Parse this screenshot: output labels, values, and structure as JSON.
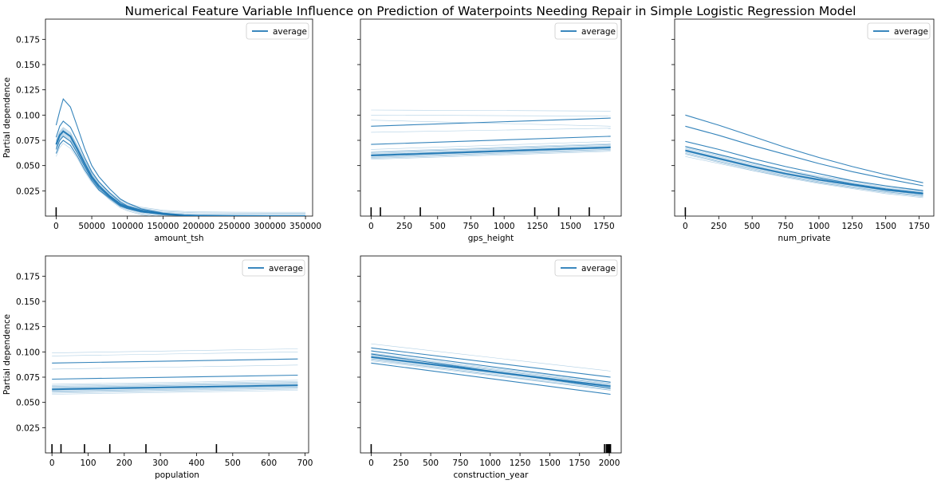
{
  "figure": {
    "title": "Numerical Feature Variable Influence on Prediction of Waterpoints Needing Repair in Simple Logistic Regression Model"
  },
  "chart_data": [
    {
      "type": "line",
      "xlabel": "amount_tsh",
      "ylabel": "Partial dependence",
      "xlim": [
        -15000,
        360000
      ],
      "ylim": [
        0.0,
        0.195
      ],
      "xticks": [
        0,
        50000,
        100000,
        150000,
        200000,
        250000,
        300000,
        350000
      ],
      "xtick_labels": [
        "0",
        "50000",
        "100000",
        "150000",
        "200000",
        "250000",
        "300000",
        "350000"
      ],
      "yticks": [
        0.025,
        0.05,
        0.075,
        0.1,
        0.125,
        0.15,
        0.175
      ],
      "ytick_labels": [
        "0.025",
        "0.050",
        "0.075",
        "0.100",
        "0.125",
        "0.150",
        "0.175"
      ],
      "show_ytick_labels": true,
      "legend": {
        "labels": [
          "average"
        ],
        "placement": "top-right"
      },
      "rug": [
        0
      ],
      "series": [
        {
          "role": "average",
          "x": [
            0,
            5000,
            10000,
            20000,
            30000,
            40000,
            50000,
            60000,
            75000,
            90000,
            100000,
            120000,
            150000,
            180000,
            200000,
            250000,
            300000,
            350000
          ],
          "y": [
            0.071,
            0.08,
            0.084,
            0.079,
            0.066,
            0.052,
            0.039,
            0.03,
            0.02,
            0.012,
            0.009,
            0.005,
            0.002,
            0.0008,
            0.0004,
            0.0001,
            3e-05,
            1e-05
          ]
        },
        {
          "role": "individual",
          "x": [
            0,
            5000,
            10000,
            20000,
            30000,
            40000,
            50000,
            60000,
            75000,
            90000,
            100000,
            120000,
            150000,
            180000,
            200000,
            250000,
            300000,
            350000
          ],
          "y": [
            0.09,
            0.104,
            0.116,
            0.108,
            0.088,
            0.067,
            0.05,
            0.039,
            0.027,
            0.017,
            0.013,
            0.007,
            0.003,
            0.0012,
            0.0006,
            0.0002,
            5e-05,
            1e-05
          ]
        },
        {
          "role": "individual",
          "x": [
            0,
            5000,
            10000,
            20000,
            30000,
            40000,
            50000,
            60000,
            75000,
            90000,
            100000,
            120000,
            150000,
            180000,
            200000,
            250000,
            300000,
            350000
          ],
          "y": [
            0.078,
            0.089,
            0.094,
            0.088,
            0.074,
            0.058,
            0.044,
            0.034,
            0.023,
            0.014,
            0.01,
            0.006,
            0.0025,
            0.001,
            0.0005,
            0.0001,
            3e-05,
            1e-05
          ]
        },
        {
          "role": "individual",
          "x": [
            0,
            5000,
            10000,
            20000,
            30000,
            40000,
            50000,
            60000,
            75000,
            90000,
            100000,
            120000,
            150000,
            180000,
            200000,
            250000,
            300000,
            350000
          ],
          "y": [
            0.066,
            0.075,
            0.079,
            0.074,
            0.062,
            0.049,
            0.037,
            0.028,
            0.019,
            0.011,
            0.008,
            0.0045,
            0.0018,
            0.0007,
            0.0004,
            0.0001,
            2e-05,
            1e-05
          ]
        },
        {
          "role": "individual",
          "x": [
            0,
            5000,
            10000,
            20000,
            30000,
            40000,
            50000,
            60000,
            75000,
            90000,
            100000,
            120000,
            150000,
            180000,
            200000,
            250000,
            300000,
            350000
          ],
          "y": [
            0.062,
            0.071,
            0.075,
            0.07,
            0.059,
            0.046,
            0.035,
            0.026,
            0.018,
            0.01,
            0.0075,
            0.004,
            0.0016,
            0.0006,
            0.0003,
            0.0001,
            2e-05,
            1e-05
          ]
        },
        {
          "role": "individual",
          "x": [
            0,
            5000,
            10000,
            20000,
            30000,
            40000,
            50000,
            60000,
            75000,
            90000,
            100000,
            120000,
            150000,
            180000,
            200000,
            250000,
            300000,
            350000
          ],
          "y": [
            0.059,
            0.068,
            0.072,
            0.067,
            0.057,
            0.044,
            0.033,
            0.025,
            0.017,
            0.0095,
            0.007,
            0.0038,
            0.0015,
            0.0006,
            0.0003,
            0.0001,
            2e-05,
            1e-05
          ]
        }
      ]
    },
    {
      "type": "line",
      "xlabel": "gps_height",
      "ylabel": "",
      "xlim": [
        -80,
        1880
      ],
      "ylim": [
        0.0,
        0.195
      ],
      "xticks": [
        0,
        250,
        500,
        750,
        1000,
        1250,
        1500,
        1750
      ],
      "xtick_labels": [
        "0",
        "250",
        "500",
        "750",
        "1000",
        "1250",
        "1500",
        "1750"
      ],
      "yticks": [
        0.025,
        0.05,
        0.075,
        0.1,
        0.125,
        0.15,
        0.175
      ],
      "show_ytick_labels": false,
      "legend": {
        "labels": [
          "average"
        ],
        "placement": "top-right"
      },
      "rug": [
        0,
        70,
        370,
        920,
        1230,
        1410,
        1640
      ],
      "series": [
        {
          "role": "average",
          "x": [
            0,
            1800
          ],
          "y": [
            0.06,
            0.068
          ]
        },
        {
          "role": "individual",
          "x": [
            0,
            1800
          ],
          "y": [
            0.089,
            0.097
          ]
        },
        {
          "role": "individual",
          "x": [
            0,
            1800
          ],
          "y": [
            0.071,
            0.079
          ]
        },
        {
          "role": "individual",
          "x": [
            0,
            1800
          ],
          "y": [
            0.066,
            0.074
          ]
        },
        {
          "role": "individual",
          "x": [
            0,
            1800
          ],
          "y": [
            0.063,
            0.071
          ]
        },
        {
          "role": "individual",
          "x": [
            0,
            1800
          ],
          "y": [
            0.061,
            0.069
          ]
        },
        {
          "role": "individual",
          "x": [
            0,
            1800
          ],
          "y": [
            0.058,
            0.066
          ]
        },
        {
          "role": "individual",
          "x": [
            0,
            1800
          ],
          "y": [
            0.105,
            0.104
          ]
        },
        {
          "role": "individual",
          "x": [
            0,
            1800
          ],
          "y": [
            0.1,
            0.099
          ]
        },
        {
          "role": "individual",
          "x": [
            0,
            1800
          ],
          "y": [
            0.095,
            0.089
          ]
        },
        {
          "role": "individual",
          "x": [
            0,
            1800
          ],
          "y": [
            0.083,
            0.087
          ]
        }
      ]
    },
    {
      "type": "line",
      "xlabel": "num_private",
      "ylabel": "",
      "xlim": [
        -80,
        1860
      ],
      "ylim": [
        0.0,
        0.195
      ],
      "xticks": [
        0,
        250,
        500,
        750,
        1000,
        1250,
        1500,
        1750
      ],
      "xtick_labels": [
        "0",
        "250",
        "500",
        "750",
        "1000",
        "1250",
        "1500",
        "1750"
      ],
      "yticks": [
        0.025,
        0.05,
        0.075,
        0.1,
        0.125,
        0.15,
        0.175
      ],
      "show_ytick_labels": false,
      "legend": {
        "labels": [
          "average"
        ],
        "placement": "top-right"
      },
      "rug": [
        0
      ],
      "series": [
        {
          "role": "average",
          "x": [
            0,
            250,
            500,
            750,
            1000,
            1250,
            1500,
            1780
          ],
          "y": [
            0.065,
            0.057,
            0.049,
            0.042,
            0.036,
            0.031,
            0.026,
            0.022
          ]
        },
        {
          "role": "individual",
          "x": [
            0,
            250,
            500,
            750,
            1000,
            1250,
            1500,
            1780
          ],
          "y": [
            0.089,
            0.08,
            0.07,
            0.061,
            0.052,
            0.044,
            0.037,
            0.03
          ]
        },
        {
          "role": "individual",
          "x": [
            0,
            250,
            500,
            750,
            1000,
            1250,
            1500,
            1780
          ],
          "y": [
            0.074,
            0.066,
            0.057,
            0.049,
            0.042,
            0.035,
            0.03,
            0.025
          ]
        },
        {
          "role": "individual",
          "x": [
            0,
            250,
            500,
            750,
            1000,
            1250,
            1500,
            1780
          ],
          "y": [
            0.1,
            0.09,
            0.079,
            0.068,
            0.058,
            0.049,
            0.041,
            0.033
          ]
        },
        {
          "role": "individual",
          "x": [
            0,
            250,
            500,
            750,
            1000,
            1250,
            1500,
            1780
          ],
          "y": [
            0.069,
            0.061,
            0.053,
            0.045,
            0.038,
            0.032,
            0.027,
            0.023
          ]
        },
        {
          "role": "individual",
          "x": [
            0,
            250,
            500,
            750,
            1000,
            1250,
            1500,
            1780
          ],
          "y": [
            0.062,
            0.054,
            0.047,
            0.04,
            0.034,
            0.029,
            0.024,
            0.02
          ]
        },
        {
          "role": "individual",
          "x": [
            0,
            250,
            500,
            750,
            1000,
            1250,
            1500,
            1780
          ],
          "y": [
            0.059,
            0.052,
            0.045,
            0.039,
            0.033,
            0.028,
            0.024,
            0.02
          ]
        }
      ]
    },
    {
      "type": "line",
      "xlabel": "population",
      "ylabel": "Partial dependence",
      "xlim": [
        -18,
        710
      ],
      "ylim": [
        0.0,
        0.195
      ],
      "xticks": [
        0,
        100,
        200,
        300,
        400,
        500,
        600,
        700
      ],
      "xtick_labels": [
        "0",
        "100",
        "200",
        "300",
        "400",
        "500",
        "600",
        "700"
      ],
      "yticks": [
        0.025,
        0.05,
        0.075,
        0.1,
        0.125,
        0.15,
        0.175
      ],
      "ytick_labels": [
        "0.025",
        "0.050",
        "0.075",
        "0.100",
        "0.125",
        "0.150",
        "0.175"
      ],
      "show_ytick_labels": true,
      "legend": {
        "labels": [
          "average"
        ],
        "placement": "top-right"
      },
      "rug": [
        0,
        25,
        90,
        160,
        260,
        455
      ],
      "series": [
        {
          "role": "average",
          "x": [
            0,
            680
          ],
          "y": [
            0.063,
            0.067
          ]
        },
        {
          "role": "individual",
          "x": [
            0,
            680
          ],
          "y": [
            0.089,
            0.093
          ]
        },
        {
          "role": "individual",
          "x": [
            0,
            680
          ],
          "y": [
            0.073,
            0.077
          ]
        },
        {
          "role": "individual",
          "x": [
            0,
            680
          ],
          "y": [
            0.068,
            0.072
          ]
        },
        {
          "role": "individual",
          "x": [
            0,
            680
          ],
          "y": [
            0.065,
            0.069
          ]
        },
        {
          "role": "individual",
          "x": [
            0,
            680
          ],
          "y": [
            0.061,
            0.065
          ]
        },
        {
          "role": "individual",
          "x": [
            0,
            680
          ],
          "y": [
            0.058,
            0.062
          ]
        },
        {
          "role": "individual",
          "x": [
            0,
            680
          ],
          "y": [
            0.099,
            0.103
          ]
        },
        {
          "role": "individual",
          "x": [
            0,
            680
          ],
          "y": [
            0.096,
            0.1
          ]
        },
        {
          "role": "individual",
          "x": [
            0,
            680
          ],
          "y": [
            0.083,
            0.087
          ]
        }
      ]
    },
    {
      "type": "line",
      "xlabel": "construction_year",
      "ylabel": "",
      "xlim": [
        -90,
        2100
      ],
      "ylim": [
        0.0,
        0.195
      ],
      "xticks": [
        0,
        250,
        500,
        750,
        1000,
        1250,
        1500,
        1750,
        2000
      ],
      "xtick_labels": [
        "0",
        "250",
        "500",
        "750",
        "1000",
        "1250",
        "1500",
        "1750",
        "2000"
      ],
      "yticks": [
        0.025,
        0.05,
        0.075,
        0.1,
        0.125,
        0.15,
        0.175
      ],
      "show_ytick_labels": false,
      "legend": {
        "labels": [
          "average"
        ],
        "placement": "top-right"
      },
      "rug": [
        0,
        1960,
        1975,
        1985,
        1995,
        2005,
        2010
      ],
      "series": [
        {
          "role": "average",
          "x": [
            0,
            2010
          ],
          "y": [
            0.095,
            0.066
          ]
        },
        {
          "role": "individual",
          "x": [
            0,
            2010
          ],
          "y": [
            0.089,
            0.058
          ]
        },
        {
          "role": "individual",
          "x": [
            0,
            2010
          ],
          "y": [
            0.098,
            0.064
          ]
        },
        {
          "role": "individual",
          "x": [
            0,
            2010
          ],
          "y": [
            0.101,
            0.07
          ]
        },
        {
          "role": "individual",
          "x": [
            0,
            2010
          ],
          "y": [
            0.104,
            0.075
          ]
        },
        {
          "role": "individual",
          "x": [
            0,
            2010
          ],
          "y": [
            0.108,
            0.081
          ]
        },
        {
          "role": "individual",
          "x": [
            0,
            2010
          ],
          "y": [
            0.093,
            0.062
          ]
        },
        {
          "role": "individual",
          "x": [
            0,
            2010
          ],
          "y": [
            0.097,
            0.068
          ]
        }
      ]
    }
  ]
}
